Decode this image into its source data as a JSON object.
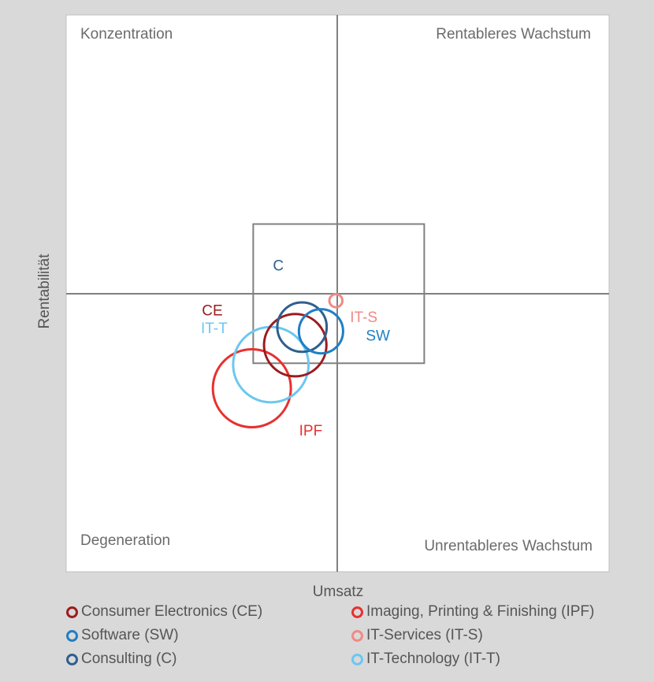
{
  "chart_data": {
    "type": "bubble",
    "xlabel": "Umsatz",
    "ylabel": "Rentabilität",
    "quadrants": {
      "top_left": "Konzentration",
      "top_right": "Rentableres Wachstum",
      "bottom_left": "Degeneration",
      "bottom_right": "Unrentableres Wachstum"
    },
    "xlim": [
      -1,
      1
    ],
    "ylim": [
      -1,
      1
    ],
    "reference_box": {
      "x": [
        -0.31,
        0.32
      ],
      "y": [
        -0.25,
        0.25
      ]
    },
    "series": [
      {
        "name": "Consumer Electronics (CE)",
        "short": "CE",
        "color": "#9b1c1f",
        "x": -0.155,
        "y": -0.185,
        "size": 0.12
      },
      {
        "name": "Imaging, Printing & Finishing (IPF)",
        "short": "IPF",
        "color": "#e8312f",
        "x": -0.315,
        "y": -0.34,
        "size": 0.15
      },
      {
        "name": "Software (SW)",
        "short": "SW",
        "color": "#1f7fc4",
        "x": -0.06,
        "y": -0.135,
        "size": 0.085
      },
      {
        "name": "IT-Services (IT-S)",
        "short": "IT-S",
        "color": "#f08a86",
        "x": -0.005,
        "y": -0.025,
        "size": 0.025
      },
      {
        "name": "Consulting (C)",
        "short": "C",
        "color": "#2f5f8e",
        "x": -0.13,
        "y": -0.12,
        "size": 0.095
      },
      {
        "name": "IT-Technology (IT-T)",
        "short": "IT-T",
        "color": "#6cc7f0",
        "x": -0.245,
        "y": -0.255,
        "size": 0.145
      }
    ]
  }
}
